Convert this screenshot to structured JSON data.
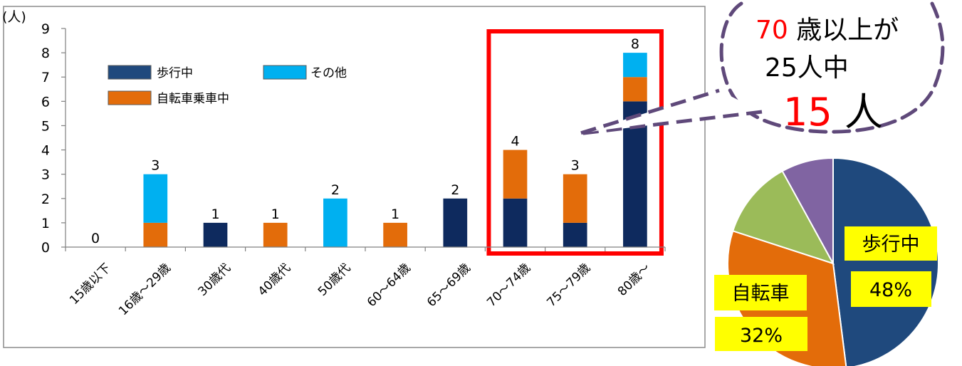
{
  "chart_data": [
    {
      "type": "bar",
      "stacked": true,
      "y_unit_label": "(人)",
      "ylim": [
        0,
        9
      ],
      "yticks": [
        0,
        1,
        2,
        3,
        4,
        5,
        6,
        7,
        8,
        9
      ],
      "categories": [
        "15歳以下",
        "16歳～29歳",
        "30歳代",
        "40歳代",
        "50歳代",
        "60～64歳",
        "65～69歳",
        "70～74歳",
        "75～79歳",
        "80歳～"
      ],
      "series": [
        {
          "name": "歩行中",
          "color": "#0E2A5E",
          "values": [
            0,
            0,
            1,
            0,
            0,
            0,
            2,
            2,
            1,
            6
          ]
        },
        {
          "name": "自転車乗車中",
          "color": "#E36C0A",
          "values": [
            0,
            1,
            0,
            1,
            0,
            1,
            0,
            2,
            2,
            1
          ]
        },
        {
          "name": "その他",
          "color": "#00B0F0",
          "values": [
            0,
            2,
            0,
            0,
            2,
            0,
            0,
            0,
            0,
            1
          ]
        }
      ],
      "totals": [
        0,
        3,
        1,
        1,
        2,
        1,
        2,
        4,
        3,
        8
      ],
      "legend_placement": "top-left",
      "highlight": {
        "categories": [
          "70～74歳",
          "75～79歳",
          "80歳～"
        ],
        "color": "#FF0000"
      },
      "grid": false
    },
    {
      "type": "pie",
      "slices": [
        {
          "name": "歩行中",
          "percent": 48,
          "color": "#1F497D"
        },
        {
          "name": "自転車",
          "percent": 32,
          "color": "#E36C0A"
        },
        {
          "name": "",
          "percent": 12,
          "color": "#9BBB59"
        },
        {
          "name": "",
          "percent": 8,
          "color": "#8064A2"
        }
      ],
      "labels": [
        {
          "text": "歩行中",
          "background": "#FFFF00"
        },
        {
          "text": "48%",
          "background": "#FFFF00"
        },
        {
          "text": "自転車",
          "background": "#FFFF00"
        },
        {
          "text": "32%",
          "background": "#FFFF00"
        }
      ]
    }
  ],
  "callout": {
    "line1_number": "70",
    "line1_text": " 歳以上が",
    "line2": "25人中",
    "line3_number": "15",
    "line3_text": " 人",
    "number_color": "#FF0000",
    "border_color": "#5F497A"
  }
}
